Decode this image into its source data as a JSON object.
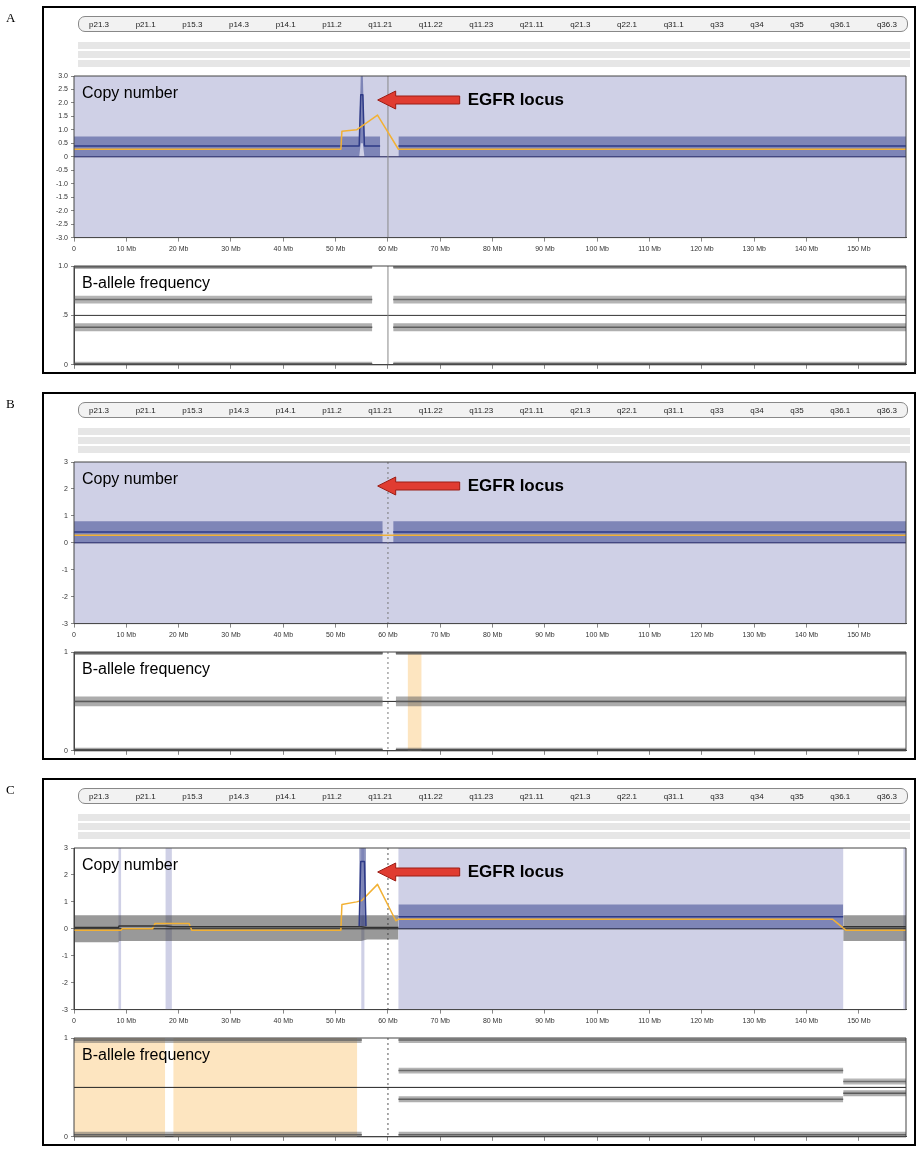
{
  "chart_data": [
    {
      "type": "other",
      "title": "A",
      "annotations": [
        "p21.3",
        "p21.1",
        "p15.3",
        "p14.3",
        "p14.1",
        "p11.2",
        "q11.21",
        "q11.22",
        "q11.23",
        "q21.11",
        "q21.3",
        "q22.1",
        "q31.1",
        "q33",
        "q34",
        "q35",
        "q36.1",
        "q36.3"
      ]
    },
    {
      "type": "line",
      "xlim": [
        0,
        159
      ],
      "ylim": [
        -3,
        3
      ],
      "xticks": [
        0,
        {
          "value": 10,
          "label": "10 Mb"
        },
        {
          "value": 20,
          "label": "20 Mb"
        },
        {
          "value": 30,
          "label": "30 Mb"
        },
        {
          "value": 40,
          "label": "40 Mb"
        },
        {
          "value": 50,
          "label": "50 Mb"
        },
        {
          "value": 60,
          "label": "60 Mb"
        },
        {
          "value": 70,
          "label": "70 Mb"
        },
        {
          "value": 80,
          "label": "80 Mb"
        },
        {
          "value": 90,
          "label": "90 Mb"
        },
        {
          "value": 100,
          "label": "100 Mb"
        },
        {
          "value": 110,
          "label": "110 Mb"
        },
        {
          "value": 120,
          "label": "120 Mb"
        },
        {
          "value": 130,
          "label": "130 Mb"
        },
        {
          "value": 140,
          "label": "140 Mb"
        },
        {
          "value": 150,
          "label": "150 Mb"
        }
      ],
      "yticks": [
        {
          "value": -3,
          "label": "-3.0"
        },
        {
          "value": -2.5,
          "label": "-2.5"
        },
        {
          "value": -2,
          "label": "-2.0"
        },
        {
          "value": -1.5,
          "label": "-1.5"
        },
        {
          "value": -1,
          "label": "-1.0"
        },
        {
          "value": -0.5,
          "label": "-0.5"
        },
        0,
        {
          "value": 0.5,
          "label": "0.5"
        },
        {
          "value": 1,
          "label": "1.0"
        },
        {
          "value": 1.5,
          "label": "1.5"
        },
        {
          "value": 2,
          "label": "2.0"
        },
        {
          "value": 2.5,
          "label": "2.5"
        },
        {
          "value": 3,
          "label": "3.0"
        }
      ],
      "series": [
        {
          "color": "#2e3a87",
          "x": [
            0,
            54.5,
            54.8,
            55.2,
            55.5,
            58.5,
            59,
            62,
            159
          ],
          "values": [
            0.4,
            0.4,
            2.3,
            2.3,
            0.4,
            0.4,
            null,
            0.4,
            0.4
          ],
          "lower": [
            0,
            0,
            0.5,
            0.5,
            0,
            0,
            null,
            0,
            0
          ],
          "upper": [
            0.75,
            0.75,
            3,
            3,
            0.75,
            0.75,
            null,
            0.75,
            0.75
          ]
        },
        {
          "color": "#f2b134",
          "x": [
            0,
            51,
            51.2,
            54,
            58,
            62,
            159
          ],
          "values": [
            0.28,
            0.28,
            0.95,
            1.0,
            1.55,
            0.28,
            0.28
          ]
        }
      ],
      "bands": [
        {
          "axis": "x",
          "from": 0,
          "to": 159,
          "color": "#cfd0e6"
        }
      ],
      "ref_lines": [
        {
          "axis": "y",
          "value": 0,
          "color": "#1a1a50"
        },
        {
          "axis": "x",
          "value": 60,
          "color": "#888888",
          "line_style": "solid"
        }
      ],
      "annotations": [
        "Copy number",
        "EGFR locus"
      ]
    },
    {
      "type": "line",
      "xlim": [
        0,
        159
      ],
      "ylim": [
        0,
        1
      ],
      "tick_labels": "y",
      "xticks": [
        0,
        10,
        20,
        30,
        40,
        50,
        60,
        70,
        80,
        90,
        100,
        110,
        120,
        130,
        140,
        150
      ],
      "yticks": [
        0,
        {
          "value": 0.5,
          "label": ".5"
        },
        {
          "value": 1,
          "label": "1.0"
        }
      ],
      "series": [
        {
          "color": "#666666",
          "x": [
            0,
            57,
            59,
            61,
            159
          ],
          "values": [
            0.99,
            0.99,
            null,
            0.99,
            0.99
          ],
          "lower": [
            0.97,
            0.97,
            null,
            0.97,
            0.97
          ],
          "upper": [
            1,
            1,
            null,
            1,
            1
          ]
        },
        {
          "color": "#6a6a6a",
          "x": [
            0,
            57,
            59,
            61,
            159
          ],
          "values": [
            0.66,
            0.66,
            null,
            0.66,
            0.66
          ],
          "lower": [
            0.62,
            0.62,
            null,
            0.62,
            0.62
          ],
          "upper": [
            0.7,
            0.7,
            null,
            0.7,
            0.7
          ]
        },
        {
          "color": "#5f5f5f",
          "x": [
            0,
            57,
            59,
            61,
            159
          ],
          "values": [
            0.38,
            0.38,
            null,
            0.38,
            0.38
          ],
          "lower": [
            0.34,
            0.34,
            null,
            0.34,
            0.34
          ],
          "upper": [
            0.42,
            0.42,
            null,
            0.42,
            0.42
          ]
        },
        {
          "color": "#626262",
          "x": [
            0,
            57,
            59,
            61,
            159
          ],
          "values": [
            0.01,
            0.01,
            null,
            0.01,
            0.01
          ],
          "lower": [
            0,
            0,
            null,
            0,
            0
          ],
          "upper": [
            0.03,
            0.03,
            null,
            0.03,
            0.03
          ]
        }
      ],
      "ref_lines": [
        {
          "axis": "y",
          "value": 0.5,
          "color": "#333333"
        },
        {
          "axis": "x",
          "value": 60,
          "color": "#888888",
          "line_style": "solid"
        }
      ],
      "annotations": [
        "B-allele frequency"
      ]
    },
    {
      "type": "other",
      "title": "B",
      "annotations": [
        "p21.3",
        "p21.1",
        "p15.3",
        "p14.3",
        "p14.1",
        "p11.2",
        "q11.21",
        "q11.22",
        "q11.23",
        "q21.11",
        "q21.3",
        "q22.1",
        "q31.1",
        "q33",
        "q34",
        "q35",
        "q36.1",
        "q36.3"
      ]
    },
    {
      "type": "line",
      "xlim": [
        0,
        159
      ],
      "ylim": [
        -3,
        3
      ],
      "xticks": [
        0,
        {
          "value": 10,
          "label": "10 Mb"
        },
        {
          "value": 20,
          "label": "20 Mb"
        },
        {
          "value": 30,
          "label": "30 Mb"
        },
        {
          "value": 40,
          "label": "40 Mb"
        },
        {
          "value": 50,
          "label": "50 Mb"
        },
        {
          "value": 60,
          "label": "60 Mb"
        },
        {
          "value": 70,
          "label": "70 Mb"
        },
        {
          "value": 80,
          "label": "80 Mb"
        },
        {
          "value": 90,
          "label": "90 Mb"
        },
        {
          "value": 100,
          "label": "100 Mb"
        },
        {
          "value": 110,
          "label": "110 Mb"
        },
        {
          "value": 120,
          "label": "120 Mb"
        },
        {
          "value": 130,
          "label": "130 Mb"
        },
        {
          "value": 140,
          "label": "140 Mb"
        },
        {
          "value": 150,
          "label": "150 Mb"
        }
      ],
      "yticks": [
        -3,
        -2,
        -1,
        0,
        1,
        2,
        3
      ],
      "series": [
        {
          "color": "#2e3a87",
          "x": [
            0,
            59,
            60,
            61,
            159
          ],
          "values": [
            0.4,
            0.4,
            null,
            0.4,
            0.4
          ],
          "lower": [
            0,
            0,
            null,
            0,
            0
          ],
          "upper": [
            0.8,
            0.8,
            null,
            0.8,
            0.8
          ]
        },
        {
          "color": "#f2b134",
          "x": [
            0,
            159
          ],
          "values": [
            0.28,
            0.28
          ]
        }
      ],
      "bands": [
        {
          "axis": "x",
          "from": 0,
          "to": 159,
          "color": "#cfd0e6"
        }
      ],
      "ref_lines": [
        {
          "axis": "y",
          "value": 0,
          "color": "#1a1a50"
        },
        {
          "axis": "x",
          "value": 60,
          "color": "#777777",
          "line_style": "dotted"
        }
      ],
      "annotations": [
        "Copy number",
        "EGFR locus"
      ]
    },
    {
      "type": "line",
      "xlim": [
        0,
        159
      ],
      "ylim": [
        0,
        1
      ],
      "tick_labels": "y",
      "xticks": [
        0,
        10,
        20,
        30,
        40,
        50,
        60,
        70,
        80,
        90,
        100,
        110,
        120,
        130,
        140,
        150
      ],
      "yticks": [
        0,
        1
      ],
      "series": [
        {
          "color": "#555555",
          "x": [
            0,
            59,
            60,
            61.5,
            159
          ],
          "values": [
            0.99,
            0.99,
            null,
            0.99,
            0.99
          ],
          "lower": [
            0.97,
            0.97,
            null,
            0.97,
            0.97
          ],
          "upper": [
            1,
            1,
            null,
            1,
            1
          ]
        },
        {
          "color": "#5a5a5a",
          "x": [
            0,
            59,
            60,
            61.5,
            159
          ],
          "values": [
            0.5,
            0.5,
            null,
            0.5,
            0.5
          ],
          "lower": [
            0.45,
            0.45,
            null,
            0.45,
            0.45
          ],
          "upper": [
            0.55,
            0.55,
            null,
            0.55,
            0.55
          ]
        },
        {
          "color": "#505050",
          "x": [
            0,
            59,
            60,
            61.5,
            159
          ],
          "values": [
            0.01,
            0.01,
            null,
            0.01,
            0.01
          ],
          "lower": [
            0,
            0,
            null,
            0,
            0
          ],
          "upper": [
            0.03,
            0.03,
            null,
            0.03,
            0.03
          ]
        }
      ],
      "bands": [
        {
          "axis": "x",
          "from": 63.8,
          "to": 66.4,
          "color": "#fde5c0"
        }
      ],
      "ref_lines": [
        {
          "axis": "y",
          "value": 0.5,
          "color": "#222222"
        },
        {
          "axis": "x",
          "value": 60,
          "color": "#777777",
          "line_style": "dotted"
        }
      ],
      "annotations": [
        "B-allele frequency"
      ]
    },
    {
      "type": "other",
      "title": "C",
      "annotations": [
        "p21.3",
        "p21.1",
        "p15.3",
        "p14.3",
        "p14.1",
        "p11.2",
        "q11.21",
        "q11.22",
        "q11.23",
        "q21.11",
        "q21.3",
        "q22.1",
        "q31.1",
        "q33",
        "q34",
        "q35",
        "q36.1",
        "q36.3"
      ]
    },
    {
      "type": "line",
      "xlim": [
        0,
        159
      ],
      "ylim": [
        -3,
        3
      ],
      "xticks": [
        0,
        {
          "value": 10,
          "label": "10 Mb"
        },
        {
          "value": 20,
          "label": "20 Mb"
        },
        {
          "value": 30,
          "label": "30 Mb"
        },
        {
          "value": 40,
          "label": "40 Mb"
        },
        {
          "value": 50,
          "label": "50 Mb"
        },
        {
          "value": 60,
          "label": "60 Mb"
        },
        {
          "value": 70,
          "label": "70 Mb"
        },
        {
          "value": 80,
          "label": "80 Mb"
        },
        {
          "value": 90,
          "label": "90 Mb"
        },
        {
          "value": 100,
          "label": "100 Mb"
        },
        {
          "value": 110,
          "label": "110 Mb"
        },
        {
          "value": 120,
          "label": "120 Mb"
        },
        {
          "value": 130,
          "label": "130 Mb"
        },
        {
          "value": 140,
          "label": "140 Mb"
        },
        {
          "value": 150,
          "label": "150 Mb"
        }
      ],
      "yticks": [
        -3,
        -2,
        -1,
        0,
        1,
        2,
        3
      ],
      "series": [
        {
          "color": "#f2b134",
          "x": [
            0,
            9,
            9.2,
            15,
            15.5,
            22,
            22.5,
            51,
            51.2,
            54,
            55,
            58,
            61.5,
            62,
            145,
            147.5,
            159
          ],
          "values": [
            -0.05,
            -0.05,
            0,
            0,
            0.2,
            0.2,
            -0.05,
            -0.05,
            0.9,
            1.0,
            1.05,
            1.65,
            0.3,
            0.35,
            0.35,
            -0.05,
            -0.05
          ]
        },
        {
          "color": "#333333",
          "x": [
            0,
            8.5,
            8.6,
            17.5,
            18.9,
            54.9,
            56,
            62,
            64,
            147,
            159
          ],
          "values": [
            0.05,
            0.05,
            0.1,
            0.1,
            0.08,
            0.08,
            0.05,
            0.05,
            null,
            0.08,
            0.08
          ],
          "lower": [
            -0.5,
            -0.5,
            -0.45,
            -0.45,
            -0.45,
            -0.45,
            -0.4,
            -0.4,
            null,
            -0.45,
            -0.45
          ],
          "upper": [
            0.5,
            0.5,
            0.5,
            0.5,
            0.5,
            0.5,
            0.5,
            0.5,
            null,
            0.5,
            0.5
          ]
        },
        {
          "color": "#2e3a87",
          "x": [
            54.5,
            54.8,
            55.5,
            55.8,
            58,
            62,
            147
          ],
          "values": [
            0.1,
            2.5,
            2.5,
            0.1,
            null,
            0.45,
            0.45
          ],
          "lower": [
            0.1,
            0.1,
            0.1,
            0.1,
            null,
            0,
            0
          ],
          "upper": [
            3,
            3,
            3,
            3,
            null,
            0.9,
            0.9
          ]
        }
      ],
      "bands": [
        {
          "axis": "x",
          "from": 8.5,
          "to": 9,
          "color": "#cfd0e6"
        },
        {
          "axis": "x",
          "from": 17.5,
          "to": 18.7,
          "color": "#cfd0e6"
        },
        {
          "axis": "x",
          "from": 54.9,
          "to": 55.5,
          "color": "#cfd0e6"
        },
        {
          "axis": "x",
          "from": 62,
          "to": 147,
          "color": "#cfd0e6"
        },
        {
          "axis": "x",
          "from": 158.5,
          "to": 159,
          "color": "#cfd0e6"
        }
      ],
      "ref_lines": [
        {
          "axis": "y",
          "value": 0,
          "color": "#111111"
        },
        {
          "axis": "x",
          "value": 60,
          "color": "#555555",
          "line_style": "dotted"
        }
      ],
      "annotations": [
        "Copy number",
        "EGFR locus"
      ]
    },
    {
      "type": "line",
      "xlim": [
        0,
        159
      ],
      "ylim": [
        0,
        1
      ],
      "tick_labels": "y",
      "xticks": [
        0,
        10,
        20,
        30,
        40,
        50,
        60,
        70,
        80,
        90,
        100,
        110,
        120,
        130,
        140,
        150
      ],
      "yticks": [
        0,
        1
      ],
      "series": [
        {
          "color": "#666666",
          "x": [
            0,
            55,
            58,
            62,
            159
          ],
          "values": [
            0.98,
            0.98,
            null,
            0.98,
            0.98
          ],
          "lower": [
            0.95,
            0.95,
            null,
            0.95,
            0.95
          ],
          "upper": [
            1,
            1,
            null,
            1,
            1
          ]
        },
        {
          "color": "#6a6a6a",
          "x": [
            62,
            147
          ],
          "values": [
            0.67,
            0.67
          ],
          "lower": [
            0.64,
            0.64
          ],
          "upper": [
            0.7,
            0.7
          ]
        },
        {
          "color": "#5f5f5f",
          "x": [
            62,
            147
          ],
          "values": [
            0.38,
            0.38
          ],
          "lower": [
            0.35,
            0.35
          ],
          "upper": [
            0.41,
            0.41
          ]
        },
        {
          "color": "#707070",
          "x": [
            147,
            159
          ],
          "values": [
            0.56,
            0.56
          ],
          "lower": [
            0.53,
            0.53
          ],
          "upper": [
            0.59,
            0.59
          ]
        },
        {
          "color": "#5a5a5a",
          "x": [
            147,
            159
          ],
          "values": [
            0.44,
            0.44
          ],
          "lower": [
            0.41,
            0.41
          ],
          "upper": [
            0.47,
            0.47
          ]
        },
        {
          "color": "#626262",
          "x": [
            0,
            55,
            58,
            62,
            159
          ],
          "values": [
            0.02,
            0.02,
            null,
            0.02,
            0.02
          ],
          "lower": [
            0,
            0,
            null,
            0,
            0
          ],
          "upper": [
            0.05,
            0.05,
            null,
            0.05,
            0.05
          ]
        }
      ],
      "bands": [
        {
          "axis": "x",
          "from": 0,
          "to": 17.4,
          "color": "#fde5c0"
        },
        {
          "axis": "x",
          "from": 19,
          "to": 54.1,
          "color": "#fde5c0"
        }
      ],
      "ref_lines": [
        {
          "axis": "y",
          "value": 0.5,
          "color": "#222222"
        },
        {
          "axis": "x",
          "value": 60,
          "color": "#555555",
          "line_style": "dotted"
        }
      ],
      "annotations": [
        "B-allele frequency"
      ]
    }
  ]
}
